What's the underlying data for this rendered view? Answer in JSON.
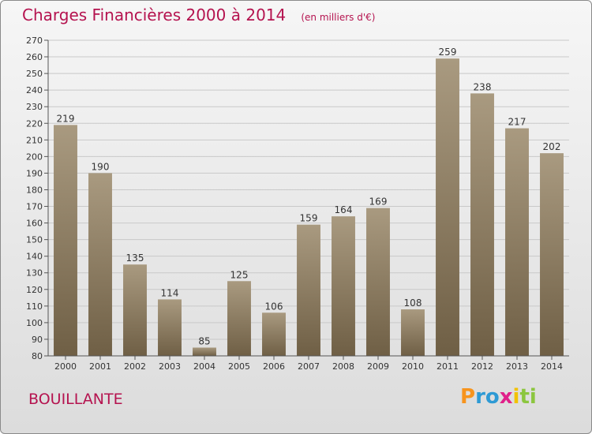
{
  "header": {
    "title": "Charges Financières 2000 à 2014",
    "subtitle": "(en milliers d'€)"
  },
  "footer": {
    "commune": "BOUILLANTE",
    "logo_letters": [
      {
        "ch": "P",
        "color": "#f7941d"
      },
      {
        "ch": "r",
        "color": "#2e9ad4"
      },
      {
        "ch": "o",
        "color": "#2e9ad4"
      },
      {
        "ch": "x",
        "color": "#e0218a"
      },
      {
        "ch": "i",
        "color": "#f2c200"
      },
      {
        "ch": "t",
        "color": "#8cc63f"
      },
      {
        "ch": "i",
        "color": "#8cc63f"
      }
    ]
  },
  "colors": {
    "accent": "#b5134f",
    "bar_light": "#a99a80",
    "bar_dark": "#6f5f45"
  },
  "chart_data": {
    "type": "bar",
    "title": "Charges Financières 2000 à 2014",
    "subtitle": "(en milliers d'€)",
    "xlabel": "",
    "ylabel": "",
    "categories": [
      "2000",
      "2001",
      "2002",
      "2003",
      "2004",
      "2005",
      "2006",
      "2007",
      "2008",
      "2009",
      "2010",
      "2011",
      "2012",
      "2013",
      "2014"
    ],
    "values": [
      219,
      190,
      135,
      114,
      85,
      125,
      106,
      159,
      164,
      169,
      108,
      259,
      238,
      217,
      202
    ],
    "ylim": [
      80,
      270
    ],
    "ytick_step": 10,
    "grid": true
  }
}
